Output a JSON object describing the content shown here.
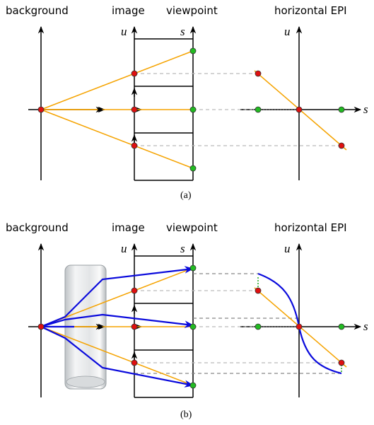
{
  "panels": [
    {
      "labels": {
        "background": "background",
        "image": "image",
        "viewpoint": "viewpoint",
        "epi": "horizontal EPI",
        "image_axis": "u",
        "viewpoint_axis": "s",
        "epi_vertical": "u",
        "epi_horizontal": "s"
      },
      "caption": "(a)"
    },
    {
      "labels": {
        "background": "background",
        "image": "image",
        "viewpoint": "viewpoint",
        "epi": "horizontal EPI",
        "image_axis": "u",
        "viewpoint_axis": "s",
        "epi_vertical": "u",
        "epi_horizontal": "s"
      },
      "caption": "(b)"
    }
  ]
}
